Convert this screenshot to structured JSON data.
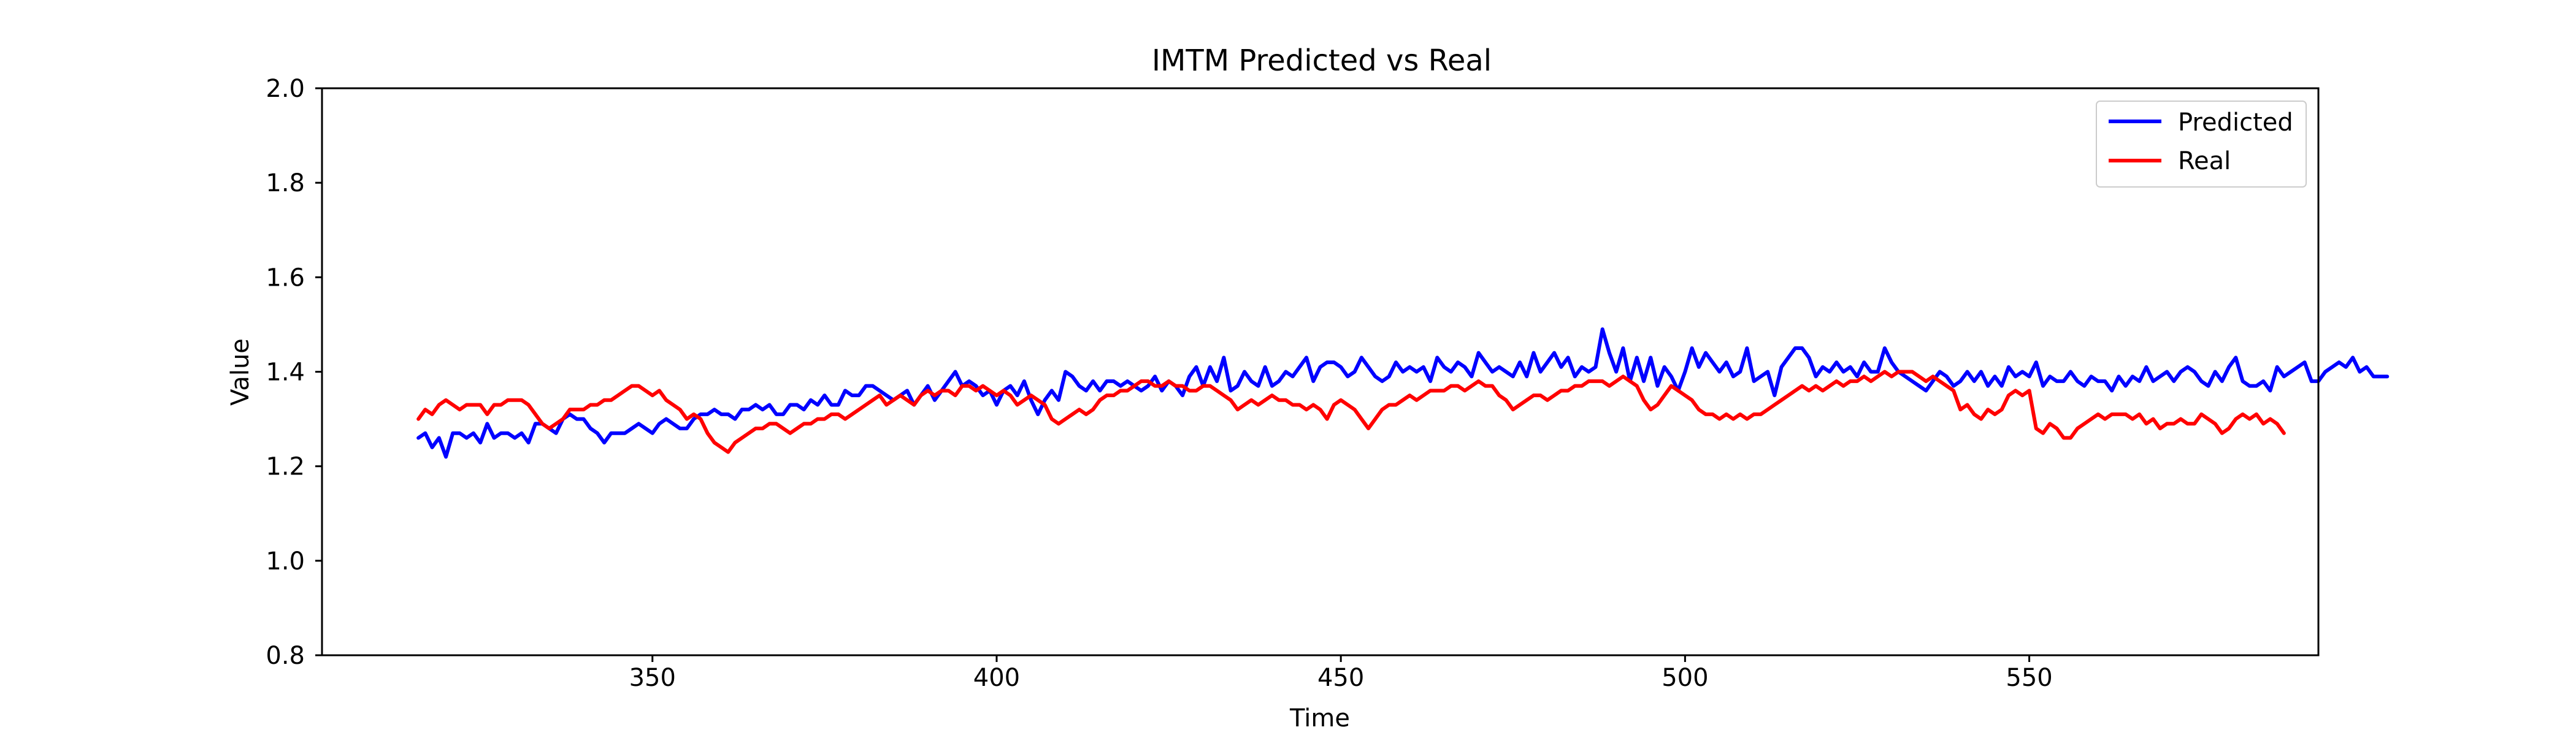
{
  "chart_data": {
    "type": "line",
    "title": "IMTM Predicted vs Real",
    "xlabel": "Time",
    "ylabel": "Value",
    "xlim": [
      302,
      592
    ],
    "ylim": [
      0.8,
      2.0
    ],
    "x_ticks": [
      350,
      400,
      450,
      500,
      550
    ],
    "y_ticks": [
      0.8,
      1.0,
      1.2,
      1.4,
      1.6,
      1.8,
      2.0
    ],
    "x_tick_labels": [
      "350",
      "400",
      "450",
      "500",
      "550"
    ],
    "y_tick_labels": [
      "0.8",
      "1.0",
      "1.2",
      "1.4",
      "1.6",
      "1.8",
      "2.0"
    ],
    "grid": false,
    "legend": {
      "position": "top-right",
      "entries": [
        "Predicted",
        "Real"
      ]
    },
    "x_start": 316,
    "x_step": 1,
    "series": [
      {
        "name": "Predicted",
        "color": "#0000ff",
        "values": [
          1.26,
          1.27,
          1.24,
          1.26,
          1.22,
          1.27,
          1.27,
          1.26,
          1.27,
          1.25,
          1.29,
          1.26,
          1.27,
          1.27,
          1.26,
          1.27,
          1.25,
          1.29,
          1.29,
          1.28,
          1.27,
          1.3,
          1.31,
          1.3,
          1.3,
          1.28,
          1.27,
          1.25,
          1.27,
          1.27,
          1.27,
          1.28,
          1.29,
          1.28,
          1.27,
          1.29,
          1.3,
          1.29,
          1.28,
          1.28,
          1.3,
          1.31,
          1.31,
          1.32,
          1.31,
          1.31,
          1.3,
          1.32,
          1.32,
          1.33,
          1.32,
          1.33,
          1.31,
          1.31,
          1.33,
          1.33,
          1.32,
          1.34,
          1.33,
          1.35,
          1.33,
          1.33,
          1.36,
          1.35,
          1.35,
          1.37,
          1.37,
          1.36,
          1.35,
          1.34,
          1.35,
          1.36,
          1.33,
          1.35,
          1.37,
          1.34,
          1.36,
          1.38,
          1.4,
          1.37,
          1.38,
          1.37,
          1.35,
          1.36,
          1.33,
          1.36,
          1.37,
          1.35,
          1.38,
          1.34,
          1.31,
          1.34,
          1.36,
          1.34,
          1.4,
          1.39,
          1.37,
          1.36,
          1.38,
          1.36,
          1.38,
          1.38,
          1.37,
          1.38,
          1.37,
          1.36,
          1.37,
          1.39,
          1.36,
          1.38,
          1.37,
          1.35,
          1.39,
          1.41,
          1.37,
          1.41,
          1.38,
          1.43,
          1.36,
          1.37,
          1.4,
          1.38,
          1.37,
          1.41,
          1.37,
          1.38,
          1.4,
          1.39,
          1.41,
          1.43,
          1.38,
          1.41,
          1.42,
          1.42,
          1.41,
          1.39,
          1.4,
          1.43,
          1.41,
          1.39,
          1.38,
          1.39,
          1.42,
          1.4,
          1.41,
          1.4,
          1.41,
          1.38,
          1.43,
          1.41,
          1.4,
          1.42,
          1.41,
          1.39,
          1.44,
          1.42,
          1.4,
          1.41,
          1.4,
          1.39,
          1.42,
          1.39,
          1.44,
          1.4,
          1.42,
          1.44,
          1.41,
          1.43,
          1.39,
          1.41,
          1.4,
          1.41,
          1.49,
          1.44,
          1.4,
          1.45,
          1.38,
          1.43,
          1.38,
          1.43,
          1.37,
          1.41,
          1.39,
          1.36,
          1.4,
          1.45,
          1.41,
          1.44,
          1.42,
          1.4,
          1.42,
          1.39,
          1.4,
          1.45,
          1.38,
          1.39,
          1.4,
          1.35,
          1.41,
          1.43,
          1.45,
          1.45,
          1.43,
          1.39,
          1.41,
          1.4,
          1.42,
          1.4,
          1.41,
          1.39,
          1.42,
          1.4,
          1.4,
          1.45,
          1.42,
          1.4,
          1.39,
          1.38,
          1.37,
          1.36,
          1.38,
          1.4,
          1.39,
          1.37,
          1.38,
          1.4,
          1.38,
          1.4,
          1.37,
          1.39,
          1.37,
          1.41,
          1.39,
          1.4,
          1.39,
          1.42,
          1.37,
          1.39,
          1.38,
          1.38,
          1.4,
          1.38,
          1.37,
          1.39,
          1.38,
          1.38,
          1.36,
          1.39,
          1.37,
          1.39,
          1.38,
          1.41,
          1.38,
          1.39,
          1.4,
          1.38,
          1.4,
          1.41,
          1.4,
          1.38,
          1.37,
          1.4,
          1.38,
          1.41,
          1.43,
          1.38,
          1.37,
          1.37,
          1.38,
          1.36,
          1.41,
          1.39,
          1.4,
          1.41,
          1.42,
          1.38,
          1.38,
          1.4,
          1.41,
          1.42,
          1.41,
          1.43,
          1.4,
          1.41,
          1.39,
          1.39,
          1.39
        ]
      },
      {
        "name": "Real",
        "color": "#ff0000",
        "values": [
          1.3,
          1.32,
          1.31,
          1.33,
          1.34,
          1.33,
          1.32,
          1.33,
          1.33,
          1.33,
          1.31,
          1.33,
          1.33,
          1.34,
          1.34,
          1.34,
          1.33,
          1.31,
          1.29,
          1.28,
          1.29,
          1.3,
          1.32,
          1.32,
          1.32,
          1.33,
          1.33,
          1.34,
          1.34,
          1.35,
          1.36,
          1.37,
          1.37,
          1.36,
          1.35,
          1.36,
          1.34,
          1.33,
          1.32,
          1.3,
          1.31,
          1.3,
          1.27,
          1.25,
          1.24,
          1.23,
          1.25,
          1.26,
          1.27,
          1.28,
          1.28,
          1.29,
          1.29,
          1.28,
          1.27,
          1.28,
          1.29,
          1.29,
          1.3,
          1.3,
          1.31,
          1.31,
          1.3,
          1.31,
          1.32,
          1.33,
          1.34,
          1.35,
          1.33,
          1.34,
          1.35,
          1.34,
          1.33,
          1.35,
          1.36,
          1.35,
          1.36,
          1.36,
          1.35,
          1.37,
          1.37,
          1.36,
          1.37,
          1.36,
          1.35,
          1.36,
          1.35,
          1.33,
          1.34,
          1.35,
          1.34,
          1.33,
          1.3,
          1.29,
          1.3,
          1.31,
          1.32,
          1.31,
          1.32,
          1.34,
          1.35,
          1.35,
          1.36,
          1.36,
          1.37,
          1.38,
          1.38,
          1.37,
          1.37,
          1.38,
          1.37,
          1.37,
          1.36,
          1.36,
          1.37,
          1.37,
          1.36,
          1.35,
          1.34,
          1.32,
          1.33,
          1.34,
          1.33,
          1.34,
          1.35,
          1.34,
          1.34,
          1.33,
          1.33,
          1.32,
          1.33,
          1.32,
          1.3,
          1.33,
          1.34,
          1.33,
          1.32,
          1.3,
          1.28,
          1.3,
          1.32,
          1.33,
          1.33,
          1.34,
          1.35,
          1.34,
          1.35,
          1.36,
          1.36,
          1.36,
          1.37,
          1.37,
          1.36,
          1.37,
          1.38,
          1.37,
          1.37,
          1.35,
          1.34,
          1.32,
          1.33,
          1.34,
          1.35,
          1.35,
          1.34,
          1.35,
          1.36,
          1.36,
          1.37,
          1.37,
          1.38,
          1.38,
          1.38,
          1.37,
          1.38,
          1.39,
          1.38,
          1.37,
          1.34,
          1.32,
          1.33,
          1.35,
          1.37,
          1.36,
          1.35,
          1.34,
          1.32,
          1.31,
          1.31,
          1.3,
          1.31,
          1.3,
          1.31,
          1.3,
          1.31,
          1.31,
          1.32,
          1.33,
          1.34,
          1.35,
          1.36,
          1.37,
          1.36,
          1.37,
          1.36,
          1.37,
          1.38,
          1.37,
          1.38,
          1.38,
          1.39,
          1.38,
          1.39,
          1.4,
          1.39,
          1.4,
          1.4,
          1.4,
          1.39,
          1.38,
          1.39,
          1.38,
          1.37,
          1.36,
          1.32,
          1.33,
          1.31,
          1.3,
          1.32,
          1.31,
          1.32,
          1.35,
          1.36,
          1.35,
          1.36,
          1.28,
          1.27,
          1.29,
          1.28,
          1.26,
          1.26,
          1.28,
          1.29,
          1.3,
          1.31,
          1.3,
          1.31,
          1.31,
          1.31,
          1.3,
          1.31,
          1.29,
          1.3,
          1.28,
          1.29,
          1.29,
          1.3,
          1.29,
          1.29,
          1.31,
          1.3,
          1.29,
          1.27,
          1.28,
          1.3,
          1.31,
          1.3,
          1.31,
          1.29,
          1.3,
          1.29,
          1.27
        ]
      }
    ]
  }
}
